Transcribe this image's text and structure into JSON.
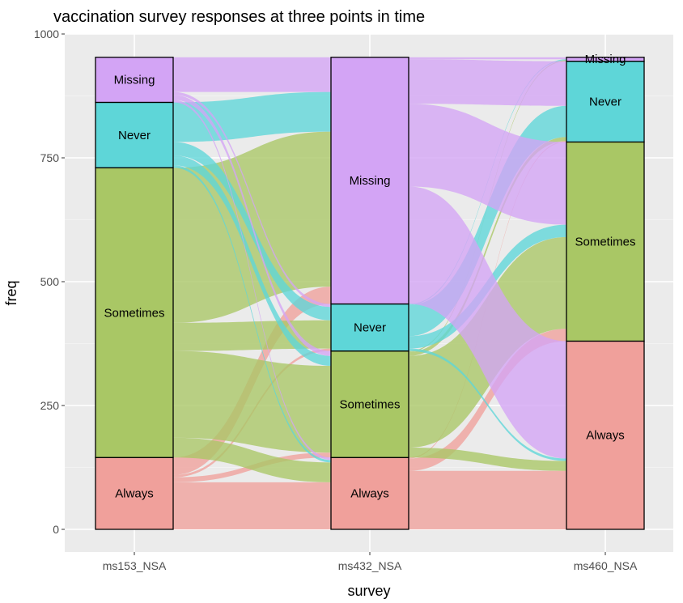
{
  "chart_data": {
    "type": "alluvial",
    "title": "vaccination survey responses at three points in time",
    "xlabel": "survey",
    "ylabel": "freq",
    "ylim": [
      0,
      1000
    ],
    "yticks": [
      0,
      250,
      500,
      750,
      1000
    ],
    "grid": true,
    "legend": "none",
    "categories": [
      "ms153_NSA",
      "ms432_NSA",
      "ms460_NSA"
    ],
    "response_order": [
      "Always",
      "Sometimes",
      "Never",
      "Missing"
    ],
    "colors": {
      "Always": "#f0a09b",
      "Sometimes": "#a9c765",
      "Never": "#5ed6d8",
      "Missing": "#d3a4f5"
    },
    "strata": [
      {
        "survey": "ms153_NSA",
        "values": {
          "Always": 145,
          "Sometimes": 585,
          "Never": 132,
          "Missing": 91
        }
      },
      {
        "survey": "ms432_NSA",
        "values": {
          "Always": 145,
          "Sometimes": 215,
          "Never": 95,
          "Missing": 498
        }
      },
      {
        "survey": "ms460_NSA",
        "values": {
          "Always": 380,
          "Sometimes": 402,
          "Never": 163,
          "Missing": 8
        }
      }
    ],
    "flows_1_2": [
      {
        "from": "Always",
        "to": "Always",
        "value": 95
      },
      {
        "from": "Always",
        "to": "Sometimes",
        "value": 10
      },
      {
        "from": "Always",
        "to": "Never",
        "value": 5
      },
      {
        "from": "Always",
        "to": "Missing",
        "value": 35
      },
      {
        "from": "Sometimes",
        "to": "Always",
        "value": 40
      },
      {
        "from": "Sometimes",
        "to": "Sometimes",
        "value": 175
      },
      {
        "from": "Sometimes",
        "to": "Never",
        "value": 57
      },
      {
        "from": "Sometimes",
        "to": "Missing",
        "value": 313
      },
      {
        "from": "Never",
        "to": "Always",
        "value": 5
      },
      {
        "from": "Never",
        "to": "Sometimes",
        "value": 20
      },
      {
        "from": "Never",
        "to": "Never",
        "value": 27
      },
      {
        "from": "Never",
        "to": "Missing",
        "value": 80
      },
      {
        "from": "Missing",
        "to": "Always",
        "value": 5
      },
      {
        "from": "Missing",
        "to": "Sometimes",
        "value": 10
      },
      {
        "from": "Missing",
        "to": "Never",
        "value": 6
      },
      {
        "from": "Missing",
        "to": "Missing",
        "value": 70
      }
    ],
    "flows_2_3": [
      {
        "from": "Always",
        "to": "Always",
        "value": 118
      },
      {
        "from": "Always",
        "to": "Sometimes",
        "value": 25
      },
      {
        "from": "Always",
        "to": "Never",
        "value": 2
      },
      {
        "from": "Always",
        "to": "Missing",
        "value": 0
      },
      {
        "from": "Sometimes",
        "to": "Always",
        "value": 20
      },
      {
        "from": "Sometimes",
        "to": "Sometimes",
        "value": 185
      },
      {
        "from": "Sometimes",
        "to": "Never",
        "value": 8
      },
      {
        "from": "Sometimes",
        "to": "Missing",
        "value": 2
      },
      {
        "from": "Never",
        "to": "Always",
        "value": 5
      },
      {
        "from": "Never",
        "to": "Sometimes",
        "value": 25
      },
      {
        "from": "Never",
        "to": "Never",
        "value": 63
      },
      {
        "from": "Never",
        "to": "Missing",
        "value": 2
      },
      {
        "from": "Missing",
        "to": "Always",
        "value": 237
      },
      {
        "from": "Missing",
        "to": "Sometimes",
        "value": 167
      },
      {
        "from": "Missing",
        "to": "Never",
        "value": 90
      },
      {
        "from": "Missing",
        "to": "Missing",
        "value": 4
      }
    ]
  }
}
